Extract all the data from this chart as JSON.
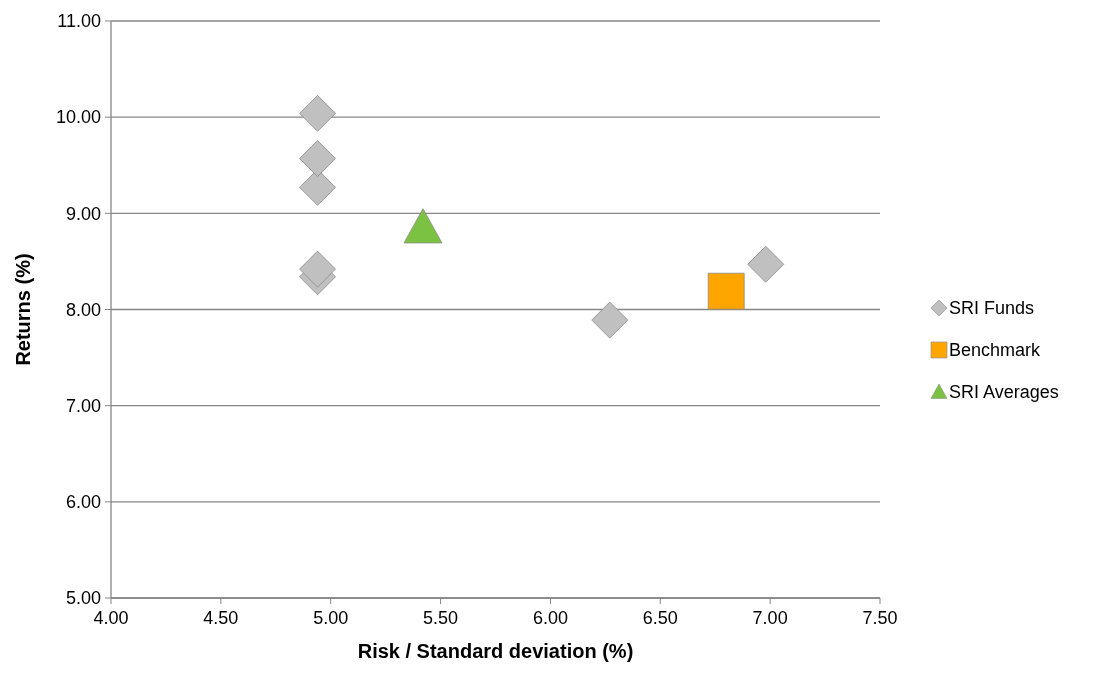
{
  "chart_data": {
    "type": "scatter",
    "xlabel": "Risk / Standard deviation (%)",
    "ylabel": "Returns (%)",
    "xlim": [
      4,
      7.5
    ],
    "xticks": [
      {
        "value": 4,
        "label": "4.00"
      },
      {
        "value": 4.5,
        "label": "4.50"
      },
      {
        "value": 5,
        "label": "5.00"
      },
      {
        "value": 5.5,
        "label": "5.50"
      },
      {
        "value": 6,
        "label": "6.00"
      },
      {
        "value": 6.5,
        "label": "6.50"
      },
      {
        "value": 7,
        "label": "7.00"
      },
      {
        "value": 7.5,
        "label": "7.50"
      }
    ],
    "ylim": [
      5,
      11
    ],
    "yticks": [
      {
        "value": 5,
        "label": "5.00"
      },
      {
        "value": 6,
        "label": "6.00"
      },
      {
        "value": 7,
        "label": "7.00"
      },
      {
        "value": 8,
        "label": "8.00"
      },
      {
        "value": 9,
        "label": "9.00"
      },
      {
        "value": 10,
        "label": "10.00"
      },
      {
        "value": 11,
        "label": "11.00"
      }
    ],
    "grid": "y",
    "legend": "right",
    "series": [
      {
        "name": "SRI Funds",
        "color": "#c0c0c0",
        "marker": "diamond",
        "x": [
          4.94,
          4.94,
          4.94,
          4.94,
          4.94,
          6.27,
          6.98
        ],
        "values": [
          10.04,
          9.57,
          9.27,
          8.42,
          8.34,
          7.89,
          8.47
        ]
      },
      {
        "name": "Benchmark",
        "color": "#ffa500",
        "marker": "square",
        "x": [
          6.8
        ],
        "values": [
          8.19
        ]
      },
      {
        "name": "SRI Averages",
        "color": "#7cc242",
        "marker": "triangle",
        "x": [
          5.42
        ],
        "values": [
          8.85
        ]
      }
    ]
  }
}
